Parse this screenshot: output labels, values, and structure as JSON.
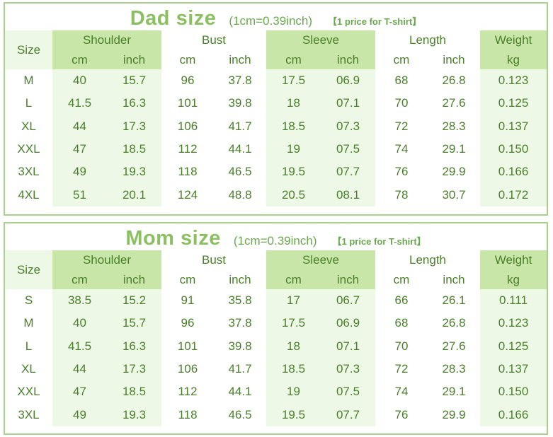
{
  "tables": [
    {
      "id": "dad",
      "title": "Dad size",
      "conversion": "(1cm=0.39inch)",
      "note": "【1 price for T-shirt】",
      "headers": {
        "size": "Size",
        "groups": [
          "Shoulder",
          "Bust",
          "Sleeve",
          "Length",
          "Weight"
        ],
        "units": [
          "cm",
          "inch",
          "cm",
          "inch",
          "cm",
          "inch",
          "cm",
          "inch",
          "kg"
        ]
      },
      "rows": [
        [
          "M",
          "40",
          "15.7",
          "96",
          "37.8",
          "17.5",
          "06.9",
          "68",
          "26.8",
          "0.123"
        ],
        [
          "L",
          "41.5",
          "16.3",
          "101",
          "39.8",
          "18",
          "07.1",
          "70",
          "27.6",
          "0.125"
        ],
        [
          "XL",
          "44",
          "17.3",
          "106",
          "41.7",
          "18.5",
          "07.3",
          "72",
          "28.3",
          "0.137"
        ],
        [
          "XXL",
          "47",
          "18.5",
          "112",
          "44.1",
          "19",
          "07.5",
          "74",
          "29.1",
          "0.150"
        ],
        [
          "3XL",
          "49",
          "19.3",
          "118",
          "46.5",
          "19.5",
          "07.7",
          "76",
          "29.9",
          "0.166"
        ],
        [
          "4XL",
          "51",
          "20.1",
          "124",
          "48.8",
          "20.5",
          "08.1",
          "78",
          "30.7",
          "0.172"
        ]
      ]
    },
    {
      "id": "mom",
      "title": "Mom size",
      "conversion": "(1cm=0.39inch)",
      "note": "【1 price for T-shirt】",
      "headers": {
        "size": "Size",
        "groups": [
          "Shoulder",
          "Bust",
          "Sleeve",
          "Length",
          "Weight"
        ],
        "units": [
          "cm",
          "inch",
          "cm",
          "inch",
          "cm",
          "inch",
          "cm",
          "inch",
          "kg"
        ]
      },
      "rows": [
        [
          "S",
          "38.5",
          "15.2",
          "91",
          "35.8",
          "17",
          "06.7",
          "66",
          "26.1",
          "0.111"
        ],
        [
          "M",
          "40",
          "15.7",
          "96",
          "37.8",
          "17.5",
          "06.9",
          "68",
          "26.8",
          "0.123"
        ],
        [
          "L",
          "41.5",
          "16.3",
          "101",
          "39.8",
          "18",
          "07.1",
          "70",
          "27.6",
          "0.125"
        ],
        [
          "XL",
          "44",
          "17.3",
          "106",
          "41.7",
          "18.5",
          "07.3",
          "72",
          "28.3",
          "0.137"
        ],
        [
          "XXL",
          "47",
          "18.5",
          "112",
          "44.1",
          "19",
          "07.5",
          "74",
          "29.1",
          "0.150"
        ],
        [
          "3XL",
          "49",
          "19.3",
          "118",
          "46.5",
          "19.5",
          "07.7",
          "76",
          "29.9",
          "0.166"
        ]
      ]
    }
  ],
  "colors": {
    "border": "#a9d18e",
    "header_green": "#c8e6a8",
    "light_green": "#eef8e6",
    "text": "#4a7f2a",
    "title": "#8cbf62"
  }
}
